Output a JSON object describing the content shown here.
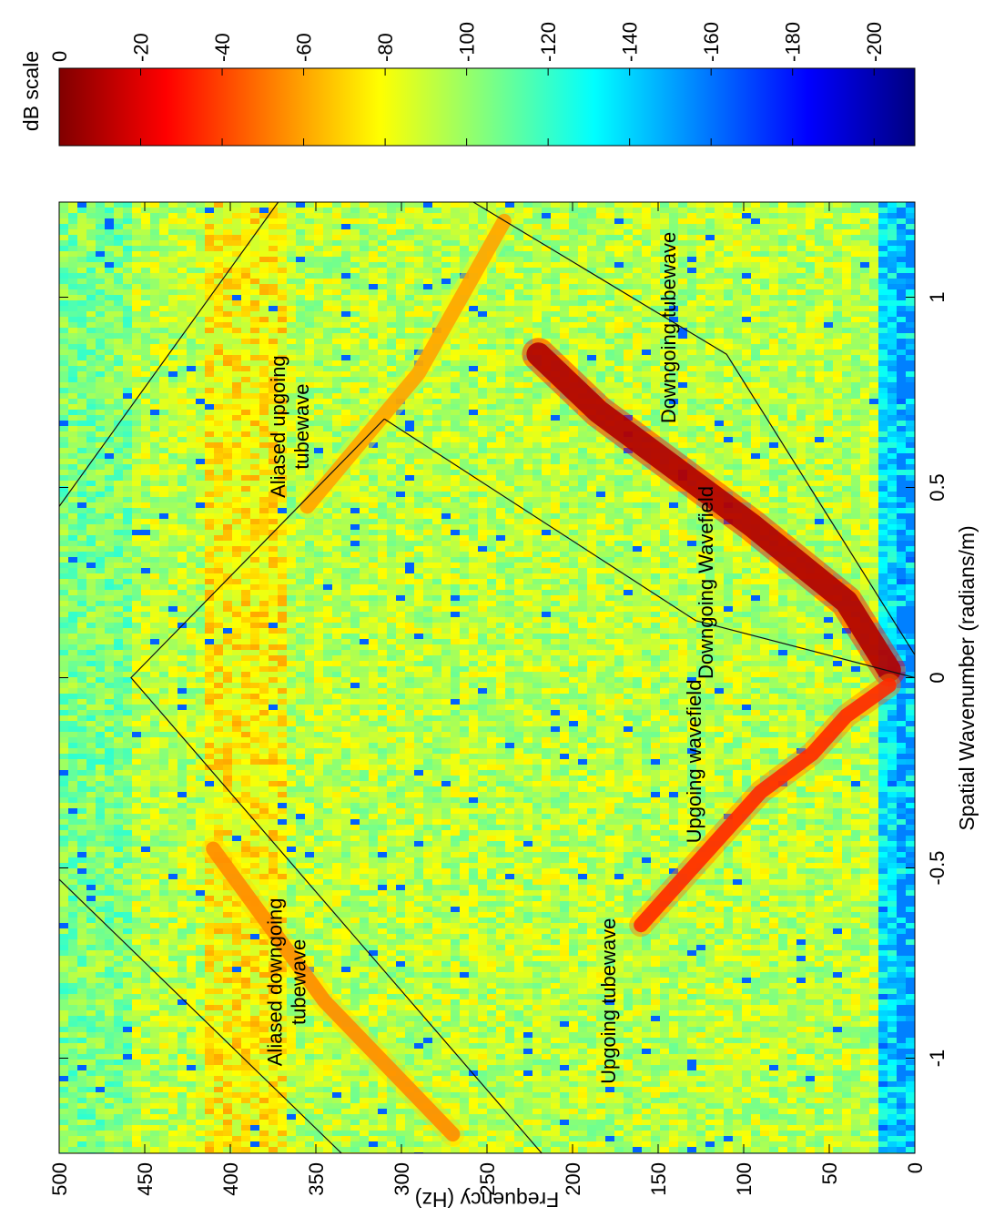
{
  "chart_data": {
    "type": "heatmap",
    "orientation": "rotated 90 degrees counter-clockwise",
    "title": "",
    "xlabel": "Spatial Wavenumber (radians/m)",
    "ylabel": "Frequency (Hz)",
    "xlim": [
      -1.25,
      1.25
    ],
    "ylim": [
      0,
      500
    ],
    "xticks": [
      "-1",
      "-0.5",
      "0",
      "0.5",
      "1"
    ],
    "yticks": [
      "0",
      "50",
      "100",
      "150",
      "200",
      "250",
      "300",
      "350",
      "400",
      "450",
      "500"
    ],
    "colorbar": {
      "label": "dB scale",
      "range": [
        0,
        -210
      ],
      "colormap": "jet (0 = dark red, -210 = dark blue)",
      "ticks": [
        "0",
        "-20",
        "-40",
        "-60",
        "-80",
        "-100",
        "-120",
        "-140",
        "-160",
        "-180",
        "-200"
      ]
    },
    "energy_features": [
      {
        "name": "Downgoing Wavefield",
        "path_k": [
          0.02,
          0.2,
          0.4,
          0.55,
          0.7,
          0.85
        ],
        "path_f": [
          15,
          40,
          95,
          140,
          185,
          220
        ],
        "peak_db": -10
      },
      {
        "name": "Upgoing wavefield",
        "path_k": [
          -0.02,
          -0.1,
          -0.2,
          -0.3,
          -0.45,
          -0.55,
          -0.65
        ],
        "path_f": [
          15,
          40,
          60,
          90,
          120,
          140,
          160
        ],
        "peak_db": -35
      },
      {
        "name": "Aliased downgoing tubewave",
        "path_k": [
          -1.2,
          -0.85,
          -0.45
        ],
        "path_f": [
          270,
          345,
          410
        ],
        "peak_db": -55
      },
      {
        "name": "Aliased upgoing tubewave",
        "path_k": [
          0.45,
          0.8,
          1.2
        ],
        "path_f": [
          355,
          290,
          240
        ],
        "peak_db": -60
      }
    ],
    "annotations": [
      {
        "text": "Aliased upgoing tubewave",
        "k": 0.66,
        "f": 368
      },
      {
        "text": "Aliased downgoing tubewave",
        "k": -0.8,
        "f": 370
      },
      {
        "text": "Upgoing tubewave",
        "k": -0.85,
        "f": 175
      },
      {
        "text": "Upgoing wavefield",
        "k": -0.22,
        "f": 125
      },
      {
        "text": "Downgoing Wavefield",
        "k": 0.25,
        "f": 118
      },
      {
        "text": "Downgoing tubewave",
        "k": 0.92,
        "f": 140
      }
    ],
    "boundary_lines": [
      {
        "k": [
          -0.53,
          -1.25
        ],
        "f": [
          500,
          335
        ]
      },
      {
        "k": [
          -1.25,
          0,
          0.68
        ],
        "f": [
          218,
          458,
          310
        ]
      },
      {
        "k": [
          0.68,
          0.15,
          0
        ],
        "f": [
          310,
          128,
          0
        ]
      },
      {
        "k": [
          0.45,
          1.25
        ],
        "f": [
          500,
          372
        ]
      },
      {
        "k": [
          1.25,
          0.85,
          0.06
        ],
        "f": [
          258,
          110,
          0
        ]
      }
    ],
    "grid": false,
    "legend": "none"
  }
}
